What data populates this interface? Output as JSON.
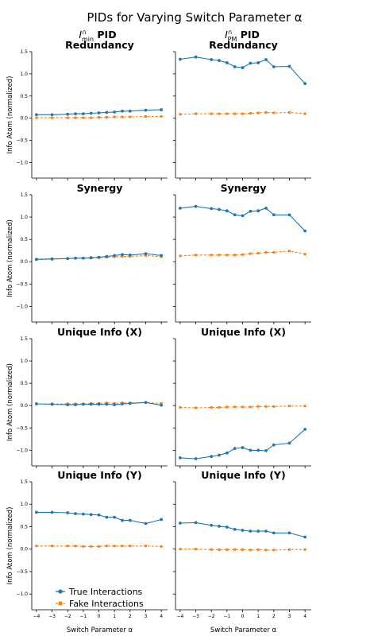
{
  "title": "PIDs for Varying Switch Parameter α",
  "column_headers": [
    {
      "sym": "I",
      "sup": "∩",
      "sub": "min",
      "suffix": " PID"
    },
    {
      "sym": "I",
      "sup": "∩",
      "sub": "PM",
      "suffix": " PID"
    }
  ],
  "legend": {
    "placement": "lower-left",
    "items": [
      "True Interactions",
      "Fake Interactions"
    ]
  },
  "colors": {
    "true": "#1f77b4",
    "fake": "#ff7f0e"
  },
  "chart_data": {
    "type": "line",
    "rows": 4,
    "cols": 2,
    "x": [
      -4,
      -3,
      -2,
      -1.5,
      -1,
      -0.5,
      0,
      0.5,
      1,
      1.5,
      2,
      3,
      4
    ],
    "xlabel": "Switch Parameter α",
    "ylabel": "Info Atom (normalized)",
    "xlim": [
      -4.3,
      4.4
    ],
    "ylim": [
      -1.35,
      1.5
    ],
    "xticks": [
      -4,
      -3,
      -2,
      -1,
      0,
      1,
      2,
      3,
      4
    ],
    "yticks": [
      -1.0,
      -0.5,
      0.0,
      0.5,
      1.0,
      1.5
    ],
    "ytick_labels": [
      "−1.0",
      "−0.5",
      "0.0",
      "0.5",
      "1.0",
      "1.5"
    ],
    "xtick_labels": [
      "−4",
      "−3",
      "−2",
      "−1",
      "0",
      "1",
      "2",
      "3",
      "4"
    ],
    "grid": false,
    "panels": [
      {
        "title": "Redundancy",
        "series": [
          {
            "name": "True Interactions",
            "values": [
              0.08,
              0.08,
              0.09,
              0.1,
              0.1,
              0.11,
              0.12,
              0.13,
              0.14,
              0.16,
              0.16,
              0.18,
              0.19
            ]
          },
          {
            "name": "Fake Interactions",
            "values": [
              0.01,
              0.01,
              0.01,
              0.01,
              0.01,
              0.01,
              0.02,
              0.02,
              0.03,
              0.03,
              0.03,
              0.04,
              0.04
            ]
          }
        ]
      },
      {
        "title": "Redundancy",
        "series": [
          {
            "name": "True Interactions",
            "values": [
              1.33,
              1.38,
              1.32,
              1.3,
              1.25,
              1.16,
              1.14,
              1.24,
              1.25,
              1.32,
              1.16,
              1.17,
              0.78
            ]
          },
          {
            "name": "Fake Interactions",
            "values": [
              0.09,
              0.1,
              0.1,
              0.1,
              0.1,
              0.1,
              0.1,
              0.11,
              0.12,
              0.13,
              0.12,
              0.13,
              0.1
            ]
          }
        ]
      },
      {
        "title": "Synergy",
        "series": [
          {
            "name": "True Interactions",
            "values": [
              0.05,
              0.06,
              0.07,
              0.08,
              0.08,
              0.09,
              0.1,
              0.12,
              0.14,
              0.16,
              0.15,
              0.18,
              0.14
            ]
          },
          {
            "name": "Fake Interactions",
            "values": [
              0.06,
              0.07,
              0.07,
              0.08,
              0.08,
              0.08,
              0.09,
              0.1,
              0.11,
              0.12,
              0.12,
              0.14,
              0.11
            ]
          }
        ]
      },
      {
        "title": "Synergy",
        "series": [
          {
            "name": "True Interactions",
            "values": [
              1.2,
              1.24,
              1.19,
              1.17,
              1.14,
              1.05,
              1.03,
              1.13,
              1.14,
              1.2,
              1.05,
              1.05,
              0.69
            ]
          },
          {
            "name": "Fake Interactions",
            "values": [
              0.13,
              0.15,
              0.15,
              0.15,
              0.15,
              0.15,
              0.16,
              0.18,
              0.19,
              0.21,
              0.21,
              0.24,
              0.17
            ]
          }
        ]
      },
      {
        "title": "Unique Info (X)",
        "series": [
          {
            "name": "True Interactions",
            "values": [
              0.04,
              0.03,
              0.02,
              0.02,
              0.03,
              0.03,
              0.03,
              0.03,
              0.02,
              0.04,
              0.05,
              0.07,
              0.01
            ]
          },
          {
            "name": "Fake Interactions",
            "values": [
              0.04,
              0.04,
              0.04,
              0.04,
              0.04,
              0.05,
              0.05,
              0.06,
              0.05,
              0.06,
              0.06,
              0.07,
              0.05
            ]
          }
        ]
      },
      {
        "title": "Unique Info (X)",
        "series": [
          {
            "name": "True Interactions",
            "values": [
              -1.17,
              -1.19,
              -1.14,
              -1.11,
              -1.06,
              -0.96,
              -0.94,
              -1.0,
              -1.0,
              -1.01,
              -0.88,
              -0.84,
              -0.53
            ]
          },
          {
            "name": "Fake Interactions",
            "values": [
              -0.04,
              -0.05,
              -0.04,
              -0.04,
              -0.03,
              -0.03,
              -0.03,
              -0.03,
              -0.02,
              -0.02,
              -0.02,
              -0.01,
              -0.01
            ]
          }
        ]
      },
      {
        "title": "Unique Info (Y)",
        "series": [
          {
            "name": "True Interactions",
            "values": [
              0.82,
              0.82,
              0.81,
              0.79,
              0.78,
              0.77,
              0.76,
              0.71,
              0.71,
              0.64,
              0.64,
              0.57,
              0.66
            ]
          },
          {
            "name": "Fake Interactions",
            "values": [
              0.07,
              0.07,
              0.07,
              0.07,
              0.06,
              0.06,
              0.06,
              0.07,
              0.07,
              0.07,
              0.07,
              0.07,
              0.06
            ]
          }
        ]
      },
      {
        "title": "Unique Info (Y)",
        "series": [
          {
            "name": "True Interactions",
            "values": [
              0.58,
              0.59,
              0.53,
              0.51,
              0.49,
              0.44,
              0.42,
              0.4,
              0.4,
              0.4,
              0.36,
              0.36,
              0.27
            ]
          },
          {
            "name": "Fake Interactions",
            "values": [
              0.0,
              0.0,
              -0.01,
              -0.01,
              -0.01,
              -0.01,
              -0.01,
              -0.02,
              -0.01,
              -0.02,
              -0.02,
              -0.01,
              -0.01
            ]
          }
        ]
      }
    ]
  }
}
